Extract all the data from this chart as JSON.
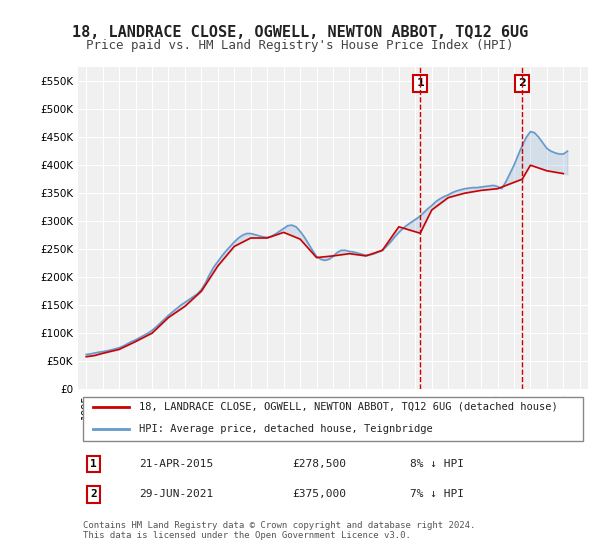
{
  "title": "18, LANDRACE CLOSE, OGWELL, NEWTON ABBOT, TQ12 6UG",
  "subtitle": "Price paid vs. HM Land Registry's House Price Index (HPI)",
  "title_fontsize": 11,
  "subtitle_fontsize": 9,
  "ylim": [
    0,
    575000
  ],
  "yticks": [
    0,
    50000,
    100000,
    150000,
    200000,
    250000,
    300000,
    350000,
    400000,
    450000,
    500000,
    550000
  ],
  "ytick_labels": [
    "£0",
    "£50K",
    "£100K",
    "£150K",
    "£200K",
    "£250K",
    "£300K",
    "£350K",
    "£400K",
    "£450K",
    "£500K",
    "£550K"
  ],
  "background_color": "#ffffff",
  "plot_bg_color": "#f0f0f0",
  "grid_color": "#ffffff",
  "hpi_color": "#6699cc",
  "price_color": "#cc0000",
  "dashed_line_color": "#cc0000",
  "transaction1_year": 2015.3,
  "transaction1_price": 278500,
  "transaction1_label": "1",
  "transaction2_year": 2021.5,
  "transaction2_price": 375000,
  "transaction2_label": "2",
  "legend_label_red": "18, LANDRACE CLOSE, OGWELL, NEWTON ABBOT, TQ12 6UG (detached house)",
  "legend_label_blue": "HPI: Average price, detached house, Teignbridge",
  "table_row1": [
    "1",
    "21-APR-2015",
    "£278,500",
    "8% ↓ HPI"
  ],
  "table_row2": [
    "2",
    "29-JUN-2021",
    "£375,000",
    "7% ↓ HPI"
  ],
  "footer": "Contains HM Land Registry data © Crown copyright and database right 2024.\nThis data is licensed under the Open Government Licence v3.0.",
  "hpi_data_x": [
    1995.0,
    1995.25,
    1995.5,
    1995.75,
    1996.0,
    1996.25,
    1996.5,
    1996.75,
    1997.0,
    1997.25,
    1997.5,
    1997.75,
    1998.0,
    1998.25,
    1998.5,
    1998.75,
    1999.0,
    1999.25,
    1999.5,
    1999.75,
    2000.0,
    2000.25,
    2000.5,
    2000.75,
    2001.0,
    2001.25,
    2001.5,
    2001.75,
    2002.0,
    2002.25,
    2002.5,
    2002.75,
    2003.0,
    2003.25,
    2003.5,
    2003.75,
    2004.0,
    2004.25,
    2004.5,
    2004.75,
    2005.0,
    2005.25,
    2005.5,
    2005.75,
    2006.0,
    2006.25,
    2006.5,
    2006.75,
    2007.0,
    2007.25,
    2007.5,
    2007.75,
    2008.0,
    2008.25,
    2008.5,
    2008.75,
    2009.0,
    2009.25,
    2009.5,
    2009.75,
    2010.0,
    2010.25,
    2010.5,
    2010.75,
    2011.0,
    2011.25,
    2011.5,
    2011.75,
    2012.0,
    2012.25,
    2012.5,
    2012.75,
    2013.0,
    2013.25,
    2013.5,
    2013.75,
    2014.0,
    2014.25,
    2014.5,
    2014.75,
    2015.0,
    2015.25,
    2015.5,
    2015.75,
    2016.0,
    2016.25,
    2016.5,
    2016.75,
    2017.0,
    2017.25,
    2017.5,
    2017.75,
    2018.0,
    2018.25,
    2018.5,
    2018.75,
    2019.0,
    2019.25,
    2019.5,
    2019.75,
    2020.0,
    2020.25,
    2020.5,
    2020.75,
    2021.0,
    2021.25,
    2021.5,
    2021.75,
    2022.0,
    2022.25,
    2022.5,
    2022.75,
    2023.0,
    2023.25,
    2023.5,
    2023.75,
    2024.0,
    2024.25
  ],
  "hpi_data_y": [
    62000,
    63000,
    64500,
    66000,
    67000,
    68500,
    70000,
    72000,
    74000,
    77000,
    81000,
    85000,
    88000,
    92000,
    96000,
    100000,
    105000,
    111000,
    118000,
    125000,
    132000,
    138000,
    144000,
    150000,
    155000,
    160000,
    165000,
    170000,
    178000,
    190000,
    205000,
    218000,
    228000,
    238000,
    247000,
    255000,
    263000,
    270000,
    275000,
    278000,
    278000,
    276000,
    274000,
    272000,
    271000,
    273000,
    277000,
    282000,
    287000,
    292000,
    293000,
    290000,
    282000,
    272000,
    260000,
    248000,
    237000,
    232000,
    230000,
    232000,
    237000,
    244000,
    248000,
    248000,
    246000,
    245000,
    243000,
    241000,
    239000,
    240000,
    242000,
    245000,
    248000,
    255000,
    263000,
    272000,
    280000,
    287000,
    293000,
    298000,
    303000,
    308000,
    315000,
    322000,
    328000,
    335000,
    340000,
    344000,
    347000,
    351000,
    354000,
    356000,
    358000,
    359000,
    360000,
    360000,
    361000,
    362000,
    363000,
    364000,
    362000,
    358000,
    370000,
    385000,
    400000,
    418000,
    435000,
    450000,
    460000,
    458000,
    450000,
    440000,
    430000,
    425000,
    422000,
    420000,
    420000,
    425000
  ],
  "price_data_x": [
    1995.0,
    1995.5,
    1996.0,
    1997.0,
    1998.0,
    1999.0,
    2000.0,
    2001.0,
    2002.0,
    2003.0,
    2004.0,
    2005.0,
    2006.0,
    2007.0,
    2008.0,
    2009.0,
    2010.0,
    2011.0,
    2012.0,
    2013.0,
    2014.0,
    2015.3,
    2016.0,
    2017.0,
    2018.0,
    2019.0,
    2020.0,
    2021.5,
    2022.0,
    2023.0,
    2024.0
  ],
  "price_data_y": [
    58000,
    60000,
    64000,
    71000,
    85000,
    100000,
    128000,
    148000,
    175000,
    220000,
    255000,
    270000,
    270000,
    280000,
    268000,
    235000,
    238000,
    242000,
    238000,
    248000,
    290000,
    278500,
    320000,
    342000,
    350000,
    355000,
    358000,
    375000,
    400000,
    390000,
    385000
  ]
}
